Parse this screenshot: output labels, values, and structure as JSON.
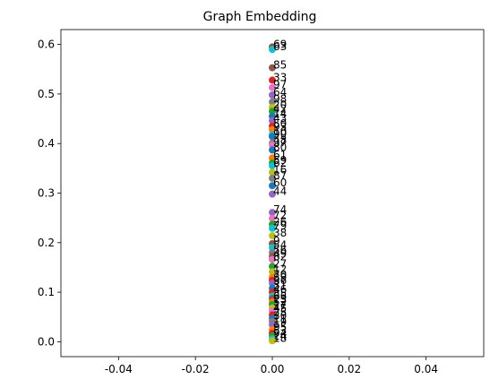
{
  "chart_data": {
    "type": "scatter",
    "title": "Graph Embedding",
    "xlabel": "",
    "ylabel": "",
    "xlim": [
      -0.055,
      0.055
    ],
    "ylim": [
      -0.03,
      0.63
    ],
    "grid": false,
    "x_ticks": [
      "-0.04",
      "-0.02",
      "0.00",
      "0.02",
      "0.04"
    ],
    "x_tick_values": [
      -0.04,
      -0.02,
      0.0,
      0.02,
      0.04
    ],
    "y_ticks": [
      "0.0",
      "0.1",
      "0.2",
      "0.3",
      "0.4",
      "0.5",
      "0.6"
    ],
    "y_tick_values": [
      0.0,
      0.1,
      0.2,
      0.3,
      0.4,
      0.5,
      0.6
    ],
    "palette": [
      "#1f77b4",
      "#ff7f0e",
      "#2ca02c",
      "#d62728",
      "#9467bd",
      "#8c564b",
      "#e377c2",
      "#7f7f7f",
      "#bcbd22",
      "#17becf"
    ],
    "points": [
      {
        "label": "69",
        "x": 0.0,
        "y": 0.595,
        "color": "#8c564b"
      },
      {
        "label": "63",
        "x": 0.0,
        "y": 0.59,
        "color": "#17becf"
      },
      {
        "label": "85",
        "x": 0.0,
        "y": 0.553,
        "color": "#8c564b"
      },
      {
        "label": "33",
        "x": 0.0,
        "y": 0.528,
        "color": "#d62728"
      },
      {
        "label": "97",
        "x": 0.0,
        "y": 0.513,
        "color": "#e377c2"
      },
      {
        "label": "64",
        "x": 0.0,
        "y": 0.498,
        "color": "#9467bd"
      },
      {
        "label": "98",
        "x": 0.0,
        "y": 0.484,
        "color": "#7f7f7f"
      },
      {
        "label": "20",
        "x": 0.0,
        "y": 0.473,
        "color": "#bcbd22"
      },
      {
        "label": "42",
        "x": 0.0,
        "y": 0.465,
        "color": "#2ca02c"
      },
      {
        "label": "14",
        "x": 0.0,
        "y": 0.455,
        "color": "#1f77b4"
      },
      {
        "label": "43",
        "x": 0.0,
        "y": 0.446,
        "color": "#9467bd"
      },
      {
        "label": "50",
        "x": 0.0,
        "y": 0.435,
        "color": "#d62728"
      },
      {
        "label": "93",
        "x": 0.0,
        "y": 0.428,
        "color": "#ff7f0e"
      },
      {
        "label": "10",
        "x": 0.0,
        "y": 0.418,
        "color": "#17becf"
      },
      {
        "label": "90",
        "x": 0.0,
        "y": 0.414,
        "color": "#1f77b4"
      },
      {
        "label": "48",
        "x": 0.0,
        "y": 0.401,
        "color": "#7f7f7f"
      },
      {
        "label": "37",
        "x": 0.0,
        "y": 0.397,
        "color": "#e377c2"
      },
      {
        "label": "80",
        "x": 0.0,
        "y": 0.387,
        "color": "#1f77b4"
      },
      {
        "label": "61",
        "x": 0.0,
        "y": 0.371,
        "color": "#ff7f0e"
      },
      {
        "label": "59",
        "x": 0.0,
        "y": 0.361,
        "color": "#2ca02c"
      },
      {
        "label": "62",
        "x": 0.0,
        "y": 0.355,
        "color": "#17becf"
      },
      {
        "label": "16",
        "x": 0.0,
        "y": 0.342,
        "color": "#bcbd22"
      },
      {
        "label": "87",
        "x": 0.0,
        "y": 0.33,
        "color": "#7f7f7f"
      },
      {
        "label": "60",
        "x": 0.0,
        "y": 0.315,
        "color": "#1f77b4"
      },
      {
        "label": "44",
        "x": 0.0,
        "y": 0.298,
        "color": "#9467bd"
      },
      {
        "label": "74",
        "x": 0.0,
        "y": 0.261,
        "color": "#9467bd"
      },
      {
        "label": "72",
        "x": 0.0,
        "y": 0.249,
        "color": "#e377c2"
      },
      {
        "label": "26",
        "x": 0.0,
        "y": 0.237,
        "color": "#2ca02c"
      },
      {
        "label": "79",
        "x": 0.0,
        "y": 0.229,
        "color": "#17becf"
      },
      {
        "label": "38",
        "x": 0.0,
        "y": 0.214,
        "color": "#bcbd22"
      },
      {
        "label": "9",
        "x": 0.0,
        "y": 0.198,
        "color": "#8c564b"
      },
      {
        "label": "54",
        "x": 0.0,
        "y": 0.19,
        "color": "#17becf"
      },
      {
        "label": "56",
        "x": 0.0,
        "y": 0.18,
        "color": "#7f7f7f"
      },
      {
        "label": "49",
        "x": 0.0,
        "y": 0.172,
        "color": "#8c564b"
      },
      {
        "label": "82",
        "x": 0.0,
        "y": 0.166,
        "color": "#e377c2"
      },
      {
        "label": "27",
        "x": 0.0,
        "y": 0.152,
        "color": "#2ca02c"
      },
      {
        "label": "12",
        "x": 0.0,
        "y": 0.141,
        "color": "#bcbd22"
      },
      {
        "label": "70",
        "x": 0.0,
        "y": 0.13,
        "color": "#ff7f0e"
      },
      {
        "label": "89",
        "x": 0.0,
        "y": 0.124,
        "color": "#d62728"
      },
      {
        "label": "36",
        "x": 0.0,
        "y": 0.118,
        "color": "#9467bd"
      },
      {
        "label": "31",
        "x": 0.0,
        "y": 0.108,
        "color": "#1f77b4"
      },
      {
        "label": "46",
        "x": 0.0,
        "y": 0.1,
        "color": "#d62728"
      },
      {
        "label": "35",
        "x": 0.0,
        "y": 0.092,
        "color": "#17becf"
      },
      {
        "label": "66",
        "x": 0.0,
        "y": 0.087,
        "color": "#8c564b"
      },
      {
        "label": "23",
        "x": 0.0,
        "y": 0.08,
        "color": "#ff7f0e"
      },
      {
        "label": "52",
        "x": 0.0,
        "y": 0.075,
        "color": "#2ca02c"
      },
      {
        "label": "17",
        "x": 0.0,
        "y": 0.068,
        "color": "#bcbd22"
      },
      {
        "label": "45",
        "x": 0.0,
        "y": 0.062,
        "color": "#e377c2"
      },
      {
        "label": "25",
        "x": 0.0,
        "y": 0.054,
        "color": "#d62728"
      },
      {
        "label": "30",
        "x": 0.0,
        "y": 0.047,
        "color": "#1f77b4"
      },
      {
        "label": "11",
        "x": 0.0,
        "y": 0.041,
        "color": "#7f7f7f"
      },
      {
        "label": "19",
        "x": 0.0,
        "y": 0.034,
        "color": "#9467bd"
      },
      {
        "label": "95",
        "x": 0.0,
        "y": 0.024,
        "color": "#ff7f0e"
      },
      {
        "label": "53",
        "x": 0.0,
        "y": 0.017,
        "color": "#d62728"
      },
      {
        "label": "94",
        "x": 0.0,
        "y": 0.012,
        "color": "#2ca02c"
      },
      {
        "label": "24",
        "x": 0.0,
        "y": 0.006,
        "color": "#17becf"
      },
      {
        "label": "18",
        "x": 0.0,
        "y": 0.002,
        "color": "#bcbd22"
      }
    ]
  }
}
